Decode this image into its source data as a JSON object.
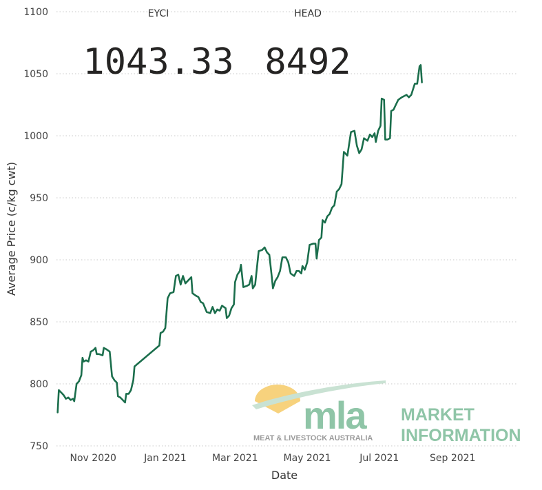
{
  "cards": [
    {
      "label": "EYCI",
      "value": "1043.33"
    },
    {
      "label": "HEAD",
      "value": "8492"
    }
  ],
  "logo": {
    "wordmark": "mla",
    "tagline": "MEAT & LIVESTOCK AUSTRALIA",
    "line1": "MARKET",
    "line2": "INFORMATION"
  },
  "colors": {
    "line": "#1b6e4c",
    "logo_green": "#8fc5a7",
    "logo_sun": "#f7d27d",
    "logo_grey": "#9a9a9a"
  },
  "chart_data": {
    "type": "line",
    "xlabel": "Date",
    "ylabel": "Average Price (c/kg cwt)",
    "ylim": [
      750,
      1100
    ],
    "yticks": [
      750,
      800,
      850,
      900,
      950,
      1000,
      1050,
      1100
    ],
    "xlim": [
      "2020-10-01",
      "2021-10-25"
    ],
    "xticks": [
      {
        "date": "2020-11-01",
        "label": "Nov 2020"
      },
      {
        "date": "2021-01-01",
        "label": "Jan 2021"
      },
      {
        "date": "2021-03-01",
        "label": "Mar 2021"
      },
      {
        "date": "2021-05-01",
        "label": "May 2021"
      },
      {
        "date": "2021-07-01",
        "label": "Jul 2021"
      },
      {
        "date": "2021-09-01",
        "label": "Sep 2021"
      }
    ],
    "grid": "horizontal",
    "series": [
      {
        "points": [
          [
            "2020-10-02",
            777
          ],
          [
            "2020-10-03",
            795
          ],
          [
            "2020-10-05",
            793
          ],
          [
            "2020-10-07",
            791
          ],
          [
            "2020-10-09",
            788
          ],
          [
            "2020-10-11",
            789
          ],
          [
            "2020-10-13",
            787
          ],
          [
            "2020-10-15",
            788
          ],
          [
            "2020-10-16",
            786
          ],
          [
            "2020-10-18",
            800
          ],
          [
            "2020-10-20",
            802
          ],
          [
            "2020-10-22",
            807
          ],
          [
            "2020-10-23",
            821
          ],
          [
            "2020-10-24",
            818
          ],
          [
            "2020-10-26",
            819
          ],
          [
            "2020-10-28",
            818
          ],
          [
            "2020-10-30",
            826
          ],
          [
            "2020-11-01",
            827
          ],
          [
            "2020-11-03",
            829
          ],
          [
            "2020-11-04",
            824
          ],
          [
            "2020-11-06",
            824
          ],
          [
            "2020-11-09",
            823
          ],
          [
            "2020-11-10",
            829
          ],
          [
            "2020-11-12",
            828
          ],
          [
            "2020-11-15",
            826
          ],
          [
            "2020-11-17",
            806
          ],
          [
            "2020-11-19",
            803
          ],
          [
            "2020-11-21",
            801
          ],
          [
            "2020-11-22",
            790
          ],
          [
            "2020-11-24",
            789
          ],
          [
            "2020-11-26",
            787
          ],
          [
            "2020-11-28",
            785
          ],
          [
            "2020-11-29",
            792
          ],
          [
            "2020-12-01",
            792
          ],
          [
            "2020-12-03",
            795
          ],
          [
            "2020-12-05",
            803
          ],
          [
            "2020-12-06",
            814
          ],
          [
            "2020-12-27",
            831
          ],
          [
            "2020-12-28",
            841
          ],
          [
            "2020-12-30",
            842
          ],
          [
            "2021-01-01",
            845
          ],
          [
            "2021-01-03",
            869
          ],
          [
            "2021-01-05",
            873
          ],
          [
            "2021-01-08",
            874
          ],
          [
            "2021-01-10",
            887
          ],
          [
            "2021-01-12",
            888
          ],
          [
            "2021-01-14",
            880
          ],
          [
            "2021-01-16",
            887
          ],
          [
            "2021-01-18",
            881
          ],
          [
            "2021-01-21",
            884
          ],
          [
            "2021-01-23",
            886
          ],
          [
            "2021-01-24",
            873
          ],
          [
            "2021-01-27",
            871
          ],
          [
            "2021-01-29",
            870
          ],
          [
            "2021-01-31",
            866
          ],
          [
            "2021-02-02",
            865
          ],
          [
            "2021-02-05",
            858
          ],
          [
            "2021-02-08",
            857
          ],
          [
            "2021-02-10",
            862
          ],
          [
            "2021-02-12",
            857
          ],
          [
            "2021-02-14",
            860
          ],
          [
            "2021-02-16",
            859
          ],
          [
            "2021-02-18",
            863
          ],
          [
            "2021-02-21",
            861
          ],
          [
            "2021-02-22",
            853
          ],
          [
            "2021-02-24",
            855
          ],
          [
            "2021-02-26",
            861
          ],
          [
            "2021-02-28",
            864
          ],
          [
            "2021-03-01",
            882
          ],
          [
            "2021-03-03",
            888
          ],
          [
            "2021-03-05",
            891
          ],
          [
            "2021-03-06",
            896
          ],
          [
            "2021-03-08",
            878
          ],
          [
            "2021-03-11",
            879
          ],
          [
            "2021-03-13",
            880
          ],
          [
            "2021-03-15",
            887
          ],
          [
            "2021-03-16",
            877
          ],
          [
            "2021-03-18",
            880
          ],
          [
            "2021-03-21",
            907
          ],
          [
            "2021-03-24",
            908
          ],
          [
            "2021-03-26",
            910
          ],
          [
            "2021-03-28",
            906
          ],
          [
            "2021-03-30",
            904
          ],
          [
            "2021-04-01",
            887
          ],
          [
            "2021-04-02",
            877
          ],
          [
            "2021-04-04",
            883
          ],
          [
            "2021-04-06",
            886
          ],
          [
            "2021-04-08",
            891
          ],
          [
            "2021-04-10",
            902
          ],
          [
            "2021-04-13",
            902
          ],
          [
            "2021-04-15",
            898
          ],
          [
            "2021-04-17",
            889
          ],
          [
            "2021-04-20",
            887
          ],
          [
            "2021-04-22",
            891
          ],
          [
            "2021-04-24",
            891
          ],
          [
            "2021-04-26",
            889
          ],
          [
            "2021-04-27",
            895
          ],
          [
            "2021-04-29",
            892
          ],
          [
            "2021-05-01",
            898
          ],
          [
            "2021-05-03",
            912
          ],
          [
            "2021-05-06",
            913
          ],
          [
            "2021-05-08",
            913
          ],
          [
            "2021-05-09",
            901
          ],
          [
            "2021-05-11",
            916
          ],
          [
            "2021-05-13",
            918
          ],
          [
            "2021-05-14",
            932
          ],
          [
            "2021-05-16",
            930
          ],
          [
            "2021-05-18",
            935
          ],
          [
            "2021-05-20",
            937
          ],
          [
            "2021-05-22",
            942
          ],
          [
            "2021-05-24",
            944
          ],
          [
            "2021-05-26",
            955
          ],
          [
            "2021-05-28",
            957
          ],
          [
            "2021-05-30",
            961
          ],
          [
            "2021-06-01",
            987
          ],
          [
            "2021-06-04",
            984
          ],
          [
            "2021-06-07",
            1003
          ],
          [
            "2021-06-10",
            1004
          ],
          [
            "2021-06-12",
            992
          ],
          [
            "2021-06-14",
            986
          ],
          [
            "2021-06-16",
            989
          ],
          [
            "2021-06-18",
            998
          ],
          [
            "2021-06-21",
            996
          ],
          [
            "2021-06-23",
            1001
          ],
          [
            "2021-06-25",
            999
          ],
          [
            "2021-06-27",
            1002
          ],
          [
            "2021-06-28",
            995
          ],
          [
            "2021-06-30",
            1004
          ],
          [
            "2021-07-02",
            1008
          ],
          [
            "2021-07-03",
            1030
          ],
          [
            "2021-07-05",
            1029
          ],
          [
            "2021-07-06",
            997
          ],
          [
            "2021-07-08",
            997
          ],
          [
            "2021-07-10",
            998
          ],
          [
            "2021-07-11",
            1020
          ],
          [
            "2021-07-13",
            1021
          ],
          [
            "2021-07-15",
            1025
          ],
          [
            "2021-07-17",
            1029
          ],
          [
            "2021-07-20",
            1031
          ],
          [
            "2021-07-22",
            1032
          ],
          [
            "2021-07-24",
            1033
          ],
          [
            "2021-07-26",
            1031
          ],
          [
            "2021-07-28",
            1033
          ],
          [
            "2021-07-31",
            1042
          ],
          [
            "2021-08-02",
            1042
          ],
          [
            "2021-08-04",
            1056
          ],
          [
            "2021-08-05",
            1057
          ],
          [
            "2021-08-06",
            1043
          ]
        ]
      }
    ]
  }
}
